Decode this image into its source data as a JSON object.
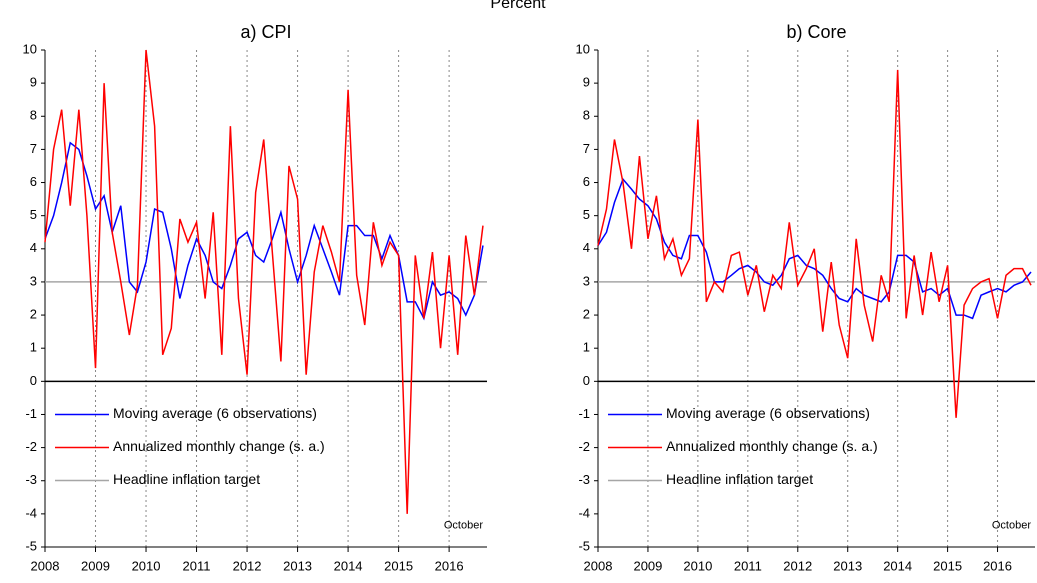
{
  "title": "Percent",
  "chart_data": [
    {
      "type": "line",
      "title": "a) CPI",
      "annotation": "October",
      "x": [
        2008,
        2008.17,
        2008.33,
        2008.5,
        2008.67,
        2008.83,
        2009,
        2009.17,
        2009.33,
        2009.5,
        2009.67,
        2009.83,
        2010,
        2010.17,
        2010.33,
        2010.5,
        2010.67,
        2010.83,
        2011,
        2011.17,
        2011.33,
        2011.5,
        2011.67,
        2011.83,
        2012,
        2012.17,
        2012.33,
        2012.5,
        2012.67,
        2012.83,
        2013,
        2013.17,
        2013.33,
        2013.5,
        2013.67,
        2013.83,
        2014,
        2014.17,
        2014.33,
        2014.5,
        2014.67,
        2014.83,
        2015,
        2015.17,
        2015.33,
        2015.5,
        2015.67,
        2015.83,
        2016,
        2016.17,
        2016.33,
        2016.5,
        2016.67
      ],
      "series": [
        {
          "name": "Moving average (6 observations)",
          "color": "#0000ff",
          "values": [
            4.3,
            5.0,
            6.0,
            7.2,
            7.0,
            6.2,
            5.2,
            5.6,
            4.5,
            5.3,
            3.0,
            2.7,
            3.6,
            5.2,
            5.1,
            4.0,
            2.5,
            3.5,
            4.3,
            3.8,
            3.0,
            2.8,
            3.5,
            4.3,
            4.5,
            3.8,
            3.6,
            4.3,
            5.1,
            4.0,
            3.0,
            3.8,
            4.7,
            4.0,
            3.3,
            2.6,
            4.7,
            4.7,
            4.4,
            4.4,
            3.7,
            4.4,
            3.8,
            2.4,
            2.4,
            1.9,
            3.0,
            2.6,
            2.7,
            2.5,
            2.0,
            2.6,
            4.1
          ]
        },
        {
          "name": "Annualized monthly change (s. a.)",
          "color": "#ff0000",
          "values": [
            4.2,
            7.0,
            8.2,
            5.3,
            8.2,
            5.0,
            0.4,
            9.0,
            4.5,
            3.0,
            1.4,
            2.9,
            10.0,
            7.7,
            0.8,
            1.6,
            4.9,
            4.2,
            4.8,
            2.5,
            5.1,
            0.8,
            7.7,
            2.5,
            0.2,
            5.7,
            7.3,
            3.9,
            0.6,
            6.5,
            5.5,
            0.2,
            3.3,
            4.7,
            3.9,
            3.0,
            8.8,
            3.2,
            1.7,
            4.8,
            3.5,
            4.2,
            3.8,
            -4.0,
            3.8,
            1.9,
            3.9,
            1.0,
            3.8,
            0.8,
            4.4,
            2.6,
            4.7
          ]
        }
      ],
      "hlines": [
        {
          "name": "Headline inflation target",
          "color": "#a6a6a6",
          "value": 3
        }
      ],
      "xlim": [
        2008,
        2016.75
      ],
      "xticks": [
        2008,
        2009,
        2010,
        2011,
        2012,
        2013,
        2014,
        2015,
        2016
      ],
      "ylim": [
        -5,
        10
      ],
      "yticks": [
        -5,
        -4,
        -3,
        -2,
        -1,
        0,
        1,
        2,
        3,
        4,
        5,
        6,
        7,
        8,
        9,
        10
      ],
      "xgrid": true,
      "legend": "lower-left"
    },
    {
      "type": "line",
      "title": "b) Core",
      "annotation": "October",
      "x": [
        2008,
        2008.17,
        2008.33,
        2008.5,
        2008.67,
        2008.83,
        2009,
        2009.17,
        2009.33,
        2009.5,
        2009.67,
        2009.83,
        2010,
        2010.17,
        2010.33,
        2010.5,
        2010.67,
        2010.83,
        2011,
        2011.17,
        2011.33,
        2011.5,
        2011.67,
        2011.83,
        2012,
        2012.17,
        2012.33,
        2012.5,
        2012.67,
        2012.83,
        2013,
        2013.17,
        2013.33,
        2013.5,
        2013.67,
        2013.83,
        2014,
        2014.17,
        2014.33,
        2014.5,
        2014.67,
        2014.83,
        2015,
        2015.17,
        2015.33,
        2015.5,
        2015.67,
        2015.83,
        2016,
        2016.17,
        2016.33,
        2016.5,
        2016.67
      ],
      "series": [
        {
          "name": "Moving average (6 observations)",
          "color": "#0000ff",
          "values": [
            4.1,
            4.5,
            5.4,
            6.1,
            5.8,
            5.5,
            5.3,
            4.9,
            4.2,
            3.8,
            3.7,
            4.4,
            4.4,
            3.9,
            3.0,
            3.0,
            3.2,
            3.4,
            3.5,
            3.3,
            3.0,
            2.9,
            3.2,
            3.7,
            3.8,
            3.5,
            3.4,
            3.2,
            2.8,
            2.5,
            2.4,
            2.8,
            2.6,
            2.5,
            2.4,
            2.7,
            3.8,
            3.8,
            3.6,
            2.7,
            2.8,
            2.6,
            2.8,
            2.0,
            2.0,
            1.9,
            2.6,
            2.7,
            2.8,
            2.7,
            2.9,
            3.0,
            3.3
          ]
        },
        {
          "name": "Annualized monthly change (s. a.)",
          "color": "#ff0000",
          "values": [
            4.1,
            5.2,
            7.3,
            6.0,
            4.0,
            6.8,
            4.3,
            5.6,
            3.7,
            4.3,
            3.2,
            3.7,
            7.9,
            2.4,
            3.0,
            2.7,
            3.8,
            3.9,
            2.6,
            3.5,
            2.1,
            3.2,
            2.8,
            4.8,
            2.9,
            3.4,
            4.0,
            1.5,
            3.6,
            1.7,
            0.7,
            4.3,
            2.3,
            1.2,
            3.2,
            2.4,
            9.4,
            1.9,
            3.8,
            2.0,
            3.9,
            2.4,
            3.5,
            -1.1,
            2.3,
            2.8,
            3.0,
            3.1,
            1.9,
            3.2,
            3.4,
            3.4,
            2.9
          ]
        }
      ],
      "hlines": [
        {
          "name": "Headline inflation target",
          "color": "#a6a6a6",
          "value": 3
        }
      ],
      "xlim": [
        2008,
        2016.75
      ],
      "xticks": [
        2008,
        2009,
        2010,
        2011,
        2012,
        2013,
        2014,
        2015,
        2016
      ],
      "ylim": [
        -5,
        10
      ],
      "yticks": [
        -5,
        -4,
        -3,
        -2,
        -1,
        0,
        1,
        2,
        3,
        4,
        5,
        6,
        7,
        8,
        9,
        10
      ],
      "xgrid": true,
      "legend": "lower-left"
    }
  ]
}
